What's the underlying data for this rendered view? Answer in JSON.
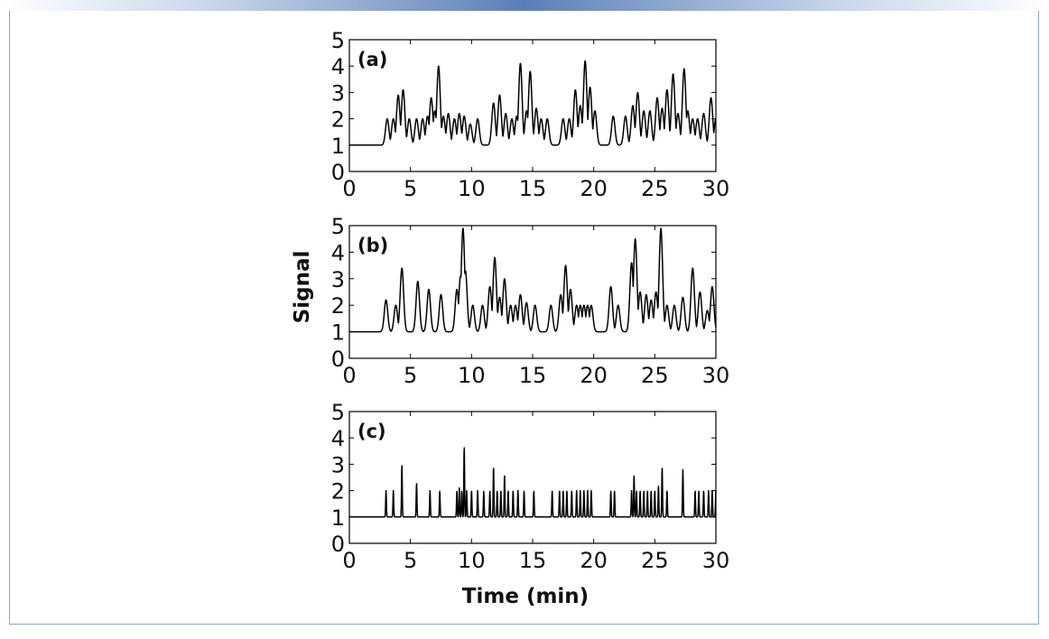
{
  "chart_data": [
    {
      "type": "line",
      "panel_label": "(a)",
      "xlim": [
        0,
        30
      ],
      "ylim": [
        0,
        5
      ],
      "xticks": [
        0,
        5,
        10,
        15,
        20,
        25,
        30
      ],
      "yticks": [
        0,
        1,
        2,
        3,
        4,
        5
      ],
      "baseline": 1,
      "peaks": [
        [
          3.1,
          2.0
        ],
        [
          3.6,
          2.0
        ],
        [
          4.0,
          2.9
        ],
        [
          4.4,
          3.1
        ],
        [
          4.9,
          2.0
        ],
        [
          5.5,
          2.0
        ],
        [
          6.0,
          2.0
        ],
        [
          6.4,
          2.1
        ],
        [
          6.7,
          2.8
        ],
        [
          7.0,
          2.3
        ],
        [
          7.3,
          4.0
        ],
        [
          7.7,
          2.1
        ],
        [
          8.1,
          2.2
        ],
        [
          8.6,
          2.0
        ],
        [
          9.0,
          2.2
        ],
        [
          9.4,
          2.1
        ],
        [
          9.9,
          1.8
        ],
        [
          10.5,
          2.0
        ],
        [
          11.8,
          2.6
        ],
        [
          12.3,
          2.9
        ],
        [
          12.8,
          2.2
        ],
        [
          13.3,
          2.0
        ],
        [
          13.7,
          2.1
        ],
        [
          14.0,
          4.1
        ],
        [
          14.5,
          2.3
        ],
        [
          14.8,
          3.8
        ],
        [
          15.3,
          2.4
        ],
        [
          15.7,
          2.0
        ],
        [
          16.2,
          2.0
        ],
        [
          17.5,
          2.0
        ],
        [
          18.0,
          2.0
        ],
        [
          18.5,
          3.1
        ],
        [
          18.9,
          2.5
        ],
        [
          19.3,
          4.2
        ],
        [
          19.7,
          3.2
        ],
        [
          20.1,
          2.3
        ],
        [
          21.6,
          2.1
        ],
        [
          22.6,
          2.1
        ],
        [
          23.2,
          2.5
        ],
        [
          23.6,
          3.0
        ],
        [
          24.1,
          2.3
        ],
        [
          24.6,
          2.3
        ],
        [
          25.2,
          2.8
        ],
        [
          25.6,
          2.4
        ],
        [
          26.0,
          3.1
        ],
        [
          26.5,
          3.7
        ],
        [
          26.9,
          2.2
        ],
        [
          27.4,
          3.9
        ],
        [
          27.7,
          2.3
        ],
        [
          28.1,
          2.0
        ],
        [
          28.5,
          2.0
        ],
        [
          29.0,
          2.2
        ],
        [
          29.6,
          2.8
        ],
        [
          30.0,
          2.0
        ]
      ],
      "peak_width": 0.14,
      "line_color": "#000000"
    },
    {
      "type": "line",
      "panel_label": "(b)",
      "xlim": [
        0,
        30
      ],
      "ylim": [
        0,
        5
      ],
      "xticks": [
        0,
        5,
        10,
        15,
        20,
        25,
        30
      ],
      "yticks": [
        0,
        1,
        2,
        3,
        4,
        5
      ],
      "baseline": 1,
      "peaks": [
        [
          3.0,
          2.2
        ],
        [
          3.8,
          2.0
        ],
        [
          4.3,
          3.4
        ],
        [
          5.6,
          2.9
        ],
        [
          6.5,
          2.6
        ],
        [
          7.5,
          2.4
        ],
        [
          8.8,
          2.6
        ],
        [
          9.1,
          3.1
        ],
        [
          9.3,
          4.9
        ],
        [
          9.5,
          3.3
        ],
        [
          10.1,
          2.0
        ],
        [
          10.9,
          2.0
        ],
        [
          11.5,
          2.7
        ],
        [
          11.9,
          3.8
        ],
        [
          12.3,
          2.3
        ],
        [
          12.7,
          3.0
        ],
        [
          13.2,
          2.0
        ],
        [
          13.6,
          2.0
        ],
        [
          14.0,
          2.4
        ],
        [
          14.5,
          2.1
        ],
        [
          15.2,
          2.0
        ],
        [
          16.5,
          2.0
        ],
        [
          17.3,
          2.4
        ],
        [
          17.7,
          3.5
        ],
        [
          18.1,
          2.6
        ],
        [
          18.6,
          2.0
        ],
        [
          18.9,
          2.0
        ],
        [
          19.2,
          2.0
        ],
        [
          19.5,
          2.0
        ],
        [
          19.8,
          2.0
        ],
        [
          21.4,
          2.7
        ],
        [
          22.0,
          2.0
        ],
        [
          23.1,
          3.6
        ],
        [
          23.4,
          4.5
        ],
        [
          23.8,
          2.5
        ],
        [
          24.3,
          2.4
        ],
        [
          24.7,
          2.2
        ],
        [
          25.1,
          2.5
        ],
        [
          25.5,
          4.9
        ],
        [
          26.0,
          2.0
        ],
        [
          26.6,
          2.0
        ],
        [
          27.3,
          2.3
        ],
        [
          28.1,
          3.4
        ],
        [
          28.7,
          2.5
        ],
        [
          29.3,
          1.8
        ],
        [
          29.7,
          2.7
        ]
      ],
      "peak_width": 0.14,
      "line_color": "#000000"
    },
    {
      "type": "line",
      "panel_label": "(c)",
      "xlim": [
        0,
        30
      ],
      "ylim": [
        0,
        5
      ],
      "xticks": [
        0,
        5,
        10,
        15,
        20,
        25,
        30
      ],
      "yticks": [
        0,
        1,
        2,
        3,
        4,
        5
      ],
      "baseline": 1,
      "peaks": [
        [
          3.0,
          2.0
        ],
        [
          3.6,
          2.0
        ],
        [
          4.3,
          3.0
        ],
        [
          5.5,
          2.3
        ],
        [
          6.6,
          2.0
        ],
        [
          7.4,
          2.0
        ],
        [
          8.8,
          2.0
        ],
        [
          9.0,
          2.1
        ],
        [
          9.2,
          2.0
        ],
        [
          9.4,
          3.7
        ],
        [
          9.6,
          2.0
        ],
        [
          10.0,
          2.0
        ],
        [
          10.5,
          2.0
        ],
        [
          11.0,
          2.0
        ],
        [
          11.5,
          2.0
        ],
        [
          11.8,
          2.9
        ],
        [
          12.1,
          2.0
        ],
        [
          12.4,
          2.0
        ],
        [
          12.7,
          2.6
        ],
        [
          13.0,
          2.0
        ],
        [
          13.4,
          2.0
        ],
        [
          13.8,
          2.0
        ],
        [
          14.3,
          2.0
        ],
        [
          15.1,
          2.0
        ],
        [
          16.6,
          2.0
        ],
        [
          17.2,
          2.0
        ],
        [
          17.5,
          2.0
        ],
        [
          17.8,
          2.0
        ],
        [
          18.2,
          2.0
        ],
        [
          18.6,
          2.0
        ],
        [
          18.9,
          2.0
        ],
        [
          19.2,
          2.0
        ],
        [
          19.5,
          2.0
        ],
        [
          19.8,
          2.0
        ],
        [
          21.4,
          2.0
        ],
        [
          21.7,
          2.0
        ],
        [
          23.1,
          2.0
        ],
        [
          23.3,
          2.6
        ],
        [
          23.5,
          2.0
        ],
        [
          23.8,
          2.0
        ],
        [
          24.1,
          2.0
        ],
        [
          24.4,
          2.0
        ],
        [
          24.7,
          2.0
        ],
        [
          25.0,
          2.0
        ],
        [
          25.3,
          2.2
        ],
        [
          25.6,
          2.9
        ],
        [
          26.0,
          2.0
        ],
        [
          27.3,
          2.8
        ],
        [
          28.3,
          2.0
        ],
        [
          28.6,
          2.0
        ],
        [
          29.0,
          2.0
        ],
        [
          29.4,
          2.0
        ],
        [
          29.7,
          2.0
        ],
        [
          30.0,
          2.0
        ]
      ],
      "peak_width": 0.03,
      "line_color": "#000000"
    }
  ],
  "axes": {
    "ylabel": "Signal",
    "xlabel": "Time (min)"
  }
}
